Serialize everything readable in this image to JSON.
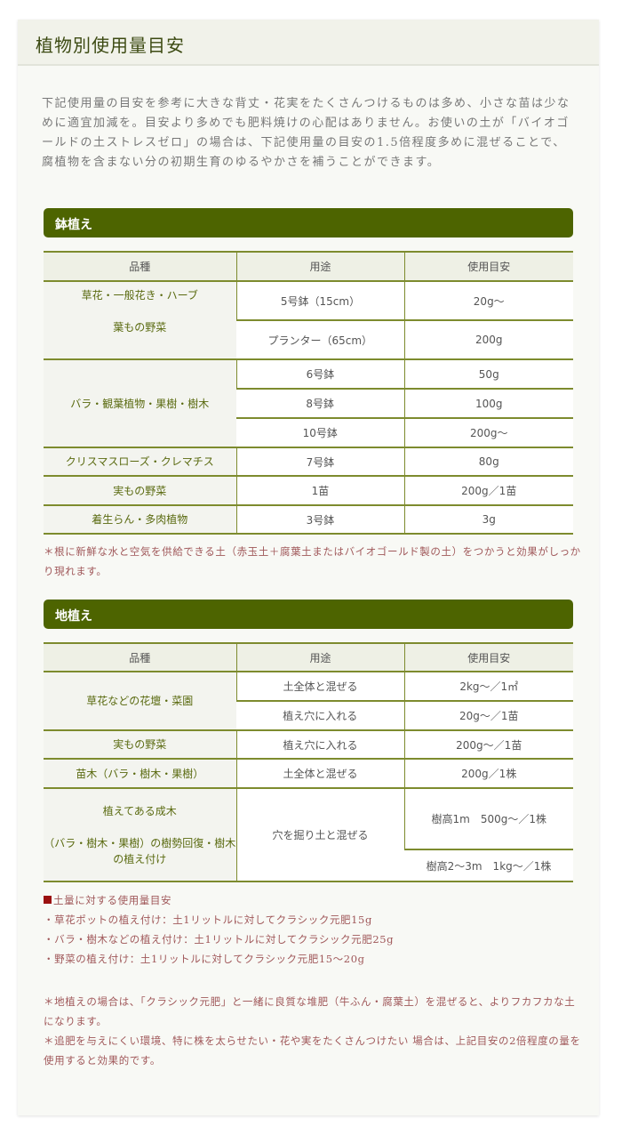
{
  "title": "植物別使用量目安",
  "intro": "下記使用量の目安を参考に大きな背丈・花実をたくさんつけるものは多め、小さな苗は少なめに適宜加減を。目安より多めでも肥料焼けの心配はありません。お使いの土が「バイオゴールドの土ストレスゼロ」の場合は、下記使用量の目安の1.5倍程度多めに混ぜることで、腐植物を含まない分の初期生育のゆるやかさを補うことができます。",
  "colors": {
    "accent": "#4d6400",
    "border": "#7d8b2e",
    "note": "#a0585a"
  },
  "sections": [
    {
      "heading": "鉢植え",
      "columns": [
        "品種",
        "用途",
        "使用目安"
      ],
      "groups": [
        {
          "kind": [
            "草花・一般花き・ハーブ",
            "葉もの野菜"
          ],
          "rows": [
            [
              "5号鉢（15cm）",
              "20g～"
            ],
            [
              "プランター（65cm）",
              "200g"
            ]
          ]
        },
        {
          "kind": [
            "バラ・観葉植物・果樹・樹木"
          ],
          "rows": [
            [
              "6号鉢",
              "50g"
            ],
            [
              "8号鉢",
              "100g"
            ],
            [
              "10号鉢",
              "200g～"
            ]
          ]
        },
        {
          "kind": [
            "クリスマスローズ・クレマチス"
          ],
          "rows": [
            [
              "7号鉢",
              "80g"
            ]
          ]
        },
        {
          "kind": [
            "実もの野菜"
          ],
          "rows": [
            [
              "1苗",
              "200g／1苗"
            ]
          ]
        },
        {
          "kind": [
            "着生らん・多肉植物"
          ],
          "rows": [
            [
              "3号鉢",
              "3g"
            ]
          ]
        }
      ],
      "note": "＊根に新鮮な水と空気を供給できる土（赤玉土＋腐葉土またはバイオゴールド製の土）をつかうと効果がしっかり現れます。"
    },
    {
      "heading": "地植え",
      "columns": [
        "品種",
        "用途",
        "使用目安"
      ],
      "groups": [
        {
          "kind": [
            "草花などの花壇・菜園"
          ],
          "rows": [
            [
              "土全体と混ぜる",
              "2kg～／1㎡"
            ],
            [
              "植え穴に入れる",
              "20g～／1苗"
            ]
          ]
        },
        {
          "kind": [
            "実もの野菜"
          ],
          "rows": [
            [
              "植え穴に入れる",
              "200g～／1苗"
            ]
          ]
        },
        {
          "kind": [
            "苗木（バラ・樹木・果樹）"
          ],
          "rows": [
            [
              "土全体と混ぜる",
              "200g／1株"
            ]
          ]
        },
        {
          "kind": [
            "植えてある成木",
            "（バラ・樹木・果樹）の樹勢回復・樹木の植え付け"
          ],
          "use": "穴を掘り土と混ぜる",
          "rows": [
            [
              "樹高1m　500g～／1株"
            ],
            [
              "樹高2～3m　1kg～／1株"
            ]
          ]
        }
      ]
    }
  ],
  "soil": {
    "heading": "土量に対する使用量目安",
    "items": [
      "・草花ポットの植え付け：土1リットルに対してクラシック元肥15g",
      "・バラ・樹木などの植え付け：土1リットルに対してクラシック元肥25g",
      "・野菜の植え付け：土1リットルに対してクラシック元肥15～20g"
    ]
  },
  "footnotes": [
    "＊地植えの場合は、「クラシック元肥」と一緒に良質な堆肥（牛ふん・腐葉土）を混ぜると、よりフカフカな土になります。",
    "＊追肥を与えにくい環境、特に株を太らせたい・花や実をたくさんつけたい 場合は、上記目安の2倍程度の量を使用すると効果的です。"
  ]
}
